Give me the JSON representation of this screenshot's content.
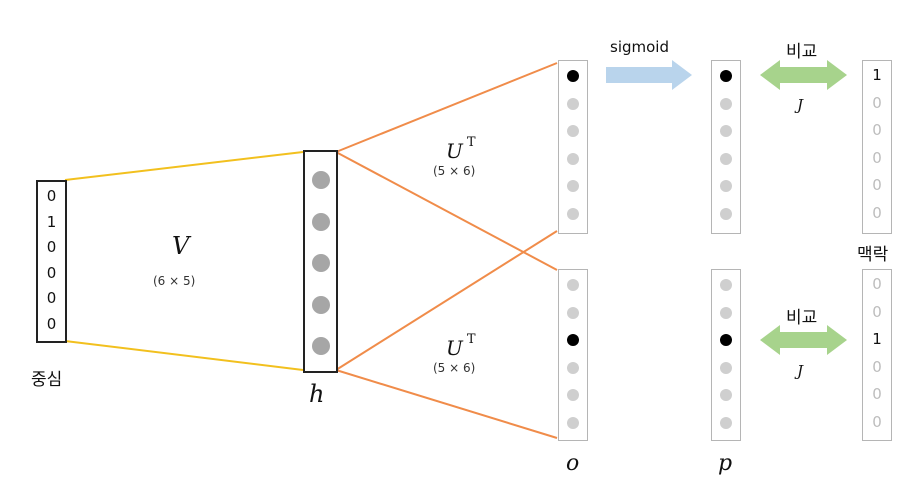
{
  "labels": {
    "center": "중심",
    "context": "맥락",
    "compare_top": "비교",
    "compare_bottom": "비교",
    "sigmoid": "sigmoid",
    "V": "V",
    "V_dims": "(6 × 5)",
    "U_top": "U",
    "U_top_sup": "T",
    "U_top_dims": "(5 × 6)",
    "U_bottom": "U",
    "U_bottom_sup": "T",
    "U_bottom_dims": "(5 × 6)",
    "h": "h",
    "o": "o",
    "p": "p",
    "J_top": "J",
    "J_bottom": "J"
  },
  "input_vector": [
    "0",
    "1",
    "0",
    "0",
    "0",
    "0"
  ],
  "hidden_units": 5,
  "output_top_active": [
    true,
    false,
    false,
    false,
    false,
    false
  ],
  "output_bottom_active": [
    false,
    false,
    true,
    false,
    false,
    false
  ],
  "prob_top_active": [
    true,
    false,
    false,
    false,
    false,
    false
  ],
  "prob_bottom_active": [
    false,
    false,
    true,
    false,
    false,
    false
  ],
  "context_top": [
    "1",
    "0",
    "0",
    "0",
    "0",
    "0"
  ],
  "context_bottom": [
    "0",
    "0",
    "1",
    "0",
    "0",
    "0"
  ],
  "colors": {
    "v_lines": "#f2c01e",
    "u_lines": "#f08c4a",
    "sigmoid_arrow": "#b9d4ec",
    "compare_arrow": "#a7d38c",
    "active_dot": "#000000",
    "hidden_dot": "#a6a6a6",
    "inactive_dot": "#cfcfcf",
    "box_border": "#222222",
    "thin_border": "#b5b5b5"
  }
}
